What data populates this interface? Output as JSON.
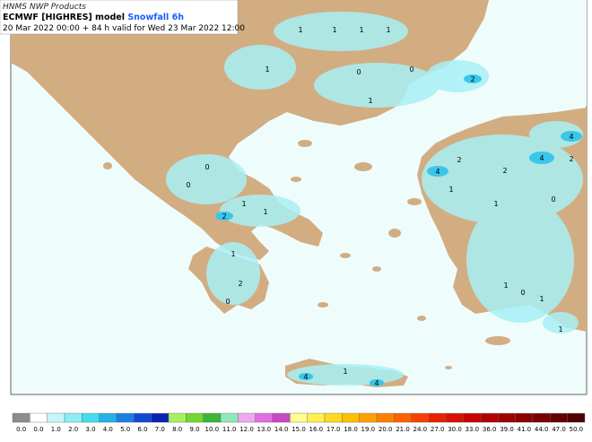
{
  "header": {
    "line1": "HNMS NWP Products",
    "model": "ECMWF [HIGHRES] model",
    "product": "Snowfall 6h",
    "validity": "20 Mar 2022 00:00 + 84 h valid for Wed 23 Mar 2022 12:00"
  },
  "map_labels": [
    "1",
    "1",
    "1",
    "1",
    "1",
    "0",
    "0",
    "1",
    "2",
    "0",
    "0",
    "1",
    "2",
    "1",
    "2",
    "2",
    "2",
    "4",
    "4",
    "4",
    "1",
    "1",
    "0",
    "1",
    "2",
    "0",
    "1",
    "0",
    "1",
    "1",
    "1",
    "4",
    "4"
  ],
  "legend": {
    "labels": [
      "0.0",
      "0.0",
      "1.0",
      "2.0",
      "3.0",
      "4.0",
      "5.0",
      "6.0",
      "7.0",
      "8.0",
      "9.0",
      "10.0",
      "11.0",
      "12.0",
      "13.0",
      "14.0",
      "15.0",
      "16.0",
      "17.0",
      "18.0",
      "19.0",
      "20.0",
      "21.0",
      "24.0",
      "27.0",
      "30.0",
      "33.0",
      "36.0",
      "39.0",
      "41.0",
      "44.0",
      "47.0",
      "50.0"
    ],
    "colors": [
      "#8c8c8c",
      "#ffffff",
      "#c4f7f7",
      "#8aeef3",
      "#45dcee",
      "#22b4e6",
      "#1a7ee2",
      "#1448d8",
      "#0b22b0",
      "#a6f060",
      "#70d830",
      "#38b838",
      "#8ee8b8",
      "#f0a8f0",
      "#e070e0",
      "#c848c8",
      "#ffff90",
      "#fff050",
      "#ffd820",
      "#ffc000",
      "#ffa000",
      "#ff8000",
      "#ff6000",
      "#f84000",
      "#e82000",
      "#d81000",
      "#c80000",
      "#b40000",
      "#a00000",
      "#8c0000",
      "#780000",
      "#640000",
      "#500000"
    ]
  }
}
